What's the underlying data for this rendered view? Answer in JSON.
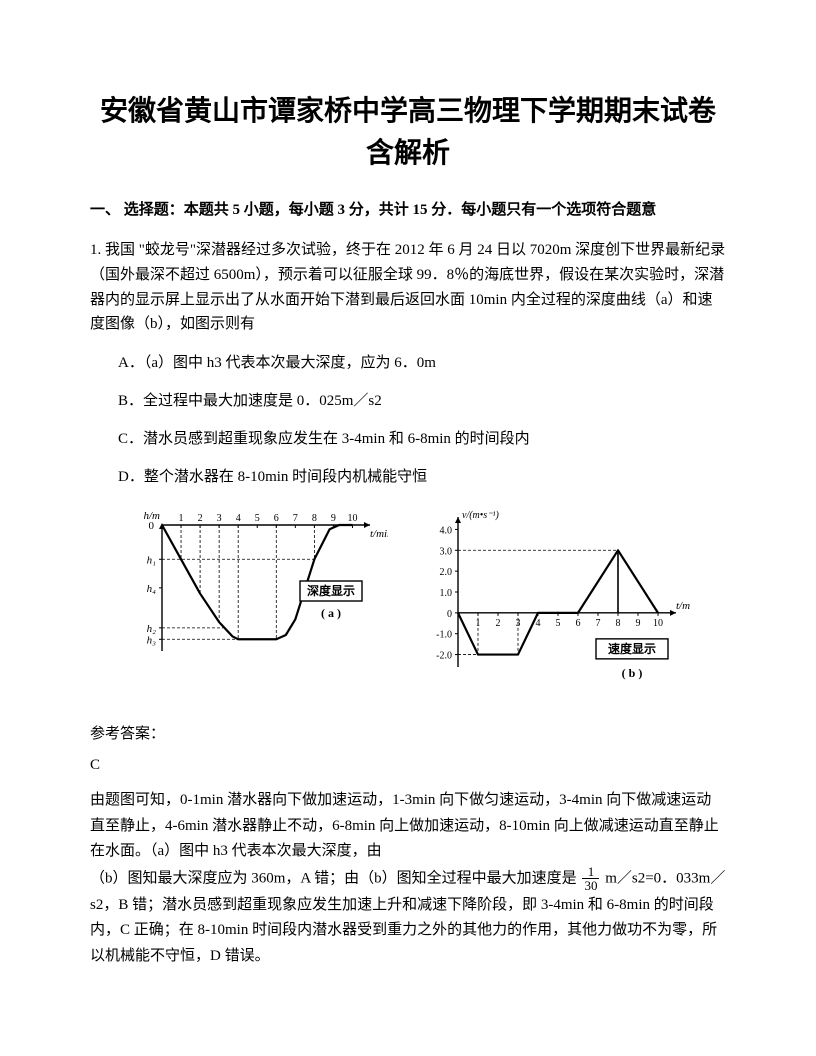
{
  "title": "安徽省黄山市谭家桥中学高三物理下学期期末试卷含解析",
  "section": "一、 选择题：本题共 5 小题，每小题 3 分，共计 15 分．每小题只有一个选项符合题意",
  "q1": {
    "stem": "1. 我国 \"蛟龙号\"深潜器经过多次试验，终于在 2012 年 6 月 24 日以 7020m 深度创下世界最新纪录（国外最深不超过 6500m），预示着可以征服全球 99．8％的海底世界，假设在某次实验时，深潜器内的显示屏上显示出了从水面开始下潜到最后返回水面 10min 内全过程的深度曲线（a）和速度图像（b），如图示则有",
    "options": {
      "A": "A．（a）图中 h3 代表本次最大深度，应为 6．0m",
      "B": "B．全过程中最大加速度是 0．025m／s2",
      "C": "C．潜水员感到超重现象应发生在 3-4min 和 6-8min 的时间段内",
      "D": "D．整个潜水器在 8-10min 时间段内机械能守恒"
    }
  },
  "chartA": {
    "type": "line",
    "title": "深度显示",
    "sublabel": "( a )",
    "xlabel": "t/min",
    "ylabel": "h/m",
    "xlim": [
      0,
      10.5
    ],
    "ylim": [
      -4.2,
      0.8
    ],
    "xticks": [
      1,
      2,
      3,
      4,
      5,
      6,
      7,
      8,
      9,
      10
    ],
    "xtick_labels": [
      "1",
      "2",
      "3",
      "4",
      "5",
      "6",
      "7",
      "8",
      "9",
      "10"
    ],
    "h_markers_y": [
      -1.2,
      -2.2,
      -3.6,
      -4.0
    ],
    "h_markers": [
      "h₁",
      "h₄",
      "h₂",
      "h₃"
    ],
    "points": [
      [
        0,
        0
      ],
      [
        1,
        -1.2
      ],
      [
        2,
        -2.4
      ],
      [
        3,
        -3.4
      ],
      [
        3.7,
        -3.9
      ],
      [
        4,
        -4.0
      ],
      [
        5,
        -4.0
      ],
      [
        6,
        -4.0
      ],
      [
        6.5,
        -3.85
      ],
      [
        7,
        -3.3
      ],
      [
        8,
        -1.2
      ],
      [
        8.8,
        -0.15
      ],
      [
        9.3,
        0
      ],
      [
        10,
        0
      ]
    ],
    "line_color": "#000000",
    "line_width": 2.2,
    "bg": "#ffffff"
  },
  "chartB": {
    "type": "line",
    "title": "速度显示",
    "sublabel": "( b )",
    "xlabel": "t/min",
    "ylabel": "v/(m•s⁻¹)",
    "xlim": [
      0,
      10.5
    ],
    "ylim": [
      -2.5,
      4.5
    ],
    "xticks": [
      1,
      2,
      3,
      4,
      5,
      6,
      7,
      8,
      9,
      10
    ],
    "xtick_labels": [
      "1",
      "2",
      "3",
      "4",
      "5",
      "6",
      "7",
      "8",
      "9",
      "10"
    ],
    "yticks": [
      -2,
      -1,
      0,
      1,
      2,
      3,
      4
    ],
    "ytick_labels": [
      "-2.0",
      "-1.0",
      "0",
      "1.0",
      "2.0",
      "3.0",
      "4.0"
    ],
    "points": [
      [
        0,
        0
      ],
      [
        1,
        -2
      ],
      [
        3,
        -2
      ],
      [
        4,
        0
      ],
      [
        6,
        0
      ],
      [
        8,
        3
      ],
      [
        10,
        0
      ]
    ],
    "dash_points": [
      [
        8,
        0
      ],
      [
        8,
        3
      ]
    ],
    "line_color": "#000000",
    "line_width": 2.2,
    "bg": "#ffffff"
  },
  "answer": {
    "head": "参考答案：",
    "letter": "C",
    "explain_1": "由题图可知，0-1min 潜水器向下做加速运动，1-3min 向下做匀速运动，3-4min 向下做减速运动直至静止，4-6min 潜水器静止不动，6-8min 向上做加速运动，8-10min 向上做减速运动直至静止在水面。（a）图中 h3 代表本次最大深度，由",
    "frac_num": "1",
    "frac_den": "30",
    "explain_2": "（b）图知最大深度应为 360m，A 错；由（b）图知全过程中最大加速度是",
    "explain_3": " m／s2=0．033m／s2，B 错；潜水员感到超重现象应发生加速上升和减速下降阶段，即 3-4min 和 6-8min 的时间段内，C 正确；在 8-10min 时间段内潜水器受到重力之外的其他力的作用，其他力做功不为零，所以机械能不守恒，D 错误。"
  }
}
